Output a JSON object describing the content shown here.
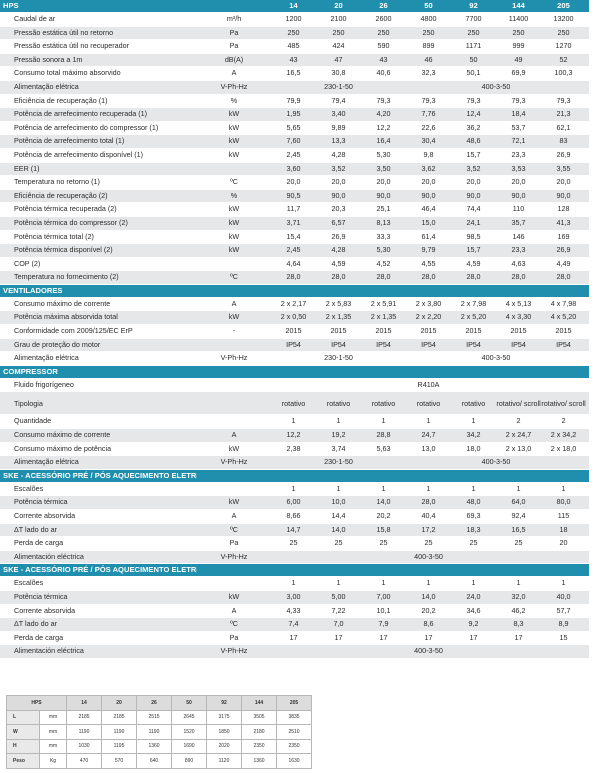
{
  "hps_header": {
    "title": "HPS",
    "models": [
      "14",
      "20",
      "26",
      "50",
      "92",
      "144",
      "205"
    ]
  },
  "hps_rows": [
    {
      "label": "Caudal de ar",
      "unit": "m³/h",
      "values": [
        "1200",
        "2100",
        "2600",
        "4800",
        "7700",
        "11400",
        "13200"
      ]
    },
    {
      "label": "Pressão estática útil no retorno",
      "unit": "Pa",
      "values": [
        "250",
        "250",
        "250",
        "250",
        "250",
        "250",
        "250"
      ]
    },
    {
      "label": "Pressão estática útil no recuperador",
      "unit": "Pa",
      "values": [
        "485",
        "424",
        "590",
        "899",
        "1171",
        "999",
        "1270"
      ]
    },
    {
      "label": "Pressão sonora a 1m",
      "unit": "dB(A)",
      "values": [
        "43",
        "47",
        "43",
        "46",
        "50",
        "49",
        "52"
      ]
    },
    {
      "label": "Consumo total máximo absorvido",
      "unit": "A",
      "values": [
        "16,5",
        "30,8",
        "40,6",
        "32,3",
        "50,1",
        "69,9",
        "100,3"
      ]
    },
    {
      "label": "Alimentação elétrica",
      "unit": "V-Ph-Hz",
      "spans": [
        {
          "text": "230-1-50",
          "cols": 3
        },
        {
          "text": "400-3-50",
          "cols": 4
        }
      ]
    },
    {
      "label": "Eficiência de recuperação (1)",
      "unit": "%",
      "values": [
        "79,9",
        "79,4",
        "79,3",
        "79,3",
        "79,3",
        "79,3",
        "79,3"
      ]
    },
    {
      "label": "Potência de arrefecimento recuperada (1)",
      "unit": "kW",
      "values": [
        "1,95",
        "3,40",
        "4,20",
        "7,76",
        "12,4",
        "18,4",
        "21,3"
      ]
    },
    {
      "label": "Potência de arrefecimento do compressor (1)",
      "unit": "kW",
      "values": [
        "5,65",
        "9,89",
        "12,2",
        "22,6",
        "36,2",
        "53,7",
        "62,1"
      ]
    },
    {
      "label": "Potência de arrefecimento total (1)",
      "unit": "kW",
      "values": [
        "7,60",
        "13,3",
        "16,4",
        "30,4",
        "48,6",
        "72,1",
        "83"
      ]
    },
    {
      "label": "Potência de arrefecimento disponível (1)",
      "unit": "kW",
      "values": [
        "2,45",
        "4,28",
        "5,30",
        "9,8",
        "15,7",
        "23,3",
        "26,9"
      ]
    },
    {
      "label": "EER (1)",
      "unit": "",
      "values": [
        "3,60",
        "3,52",
        "3,50",
        "3,62",
        "3,52",
        "3,53",
        "3,55"
      ]
    },
    {
      "label": "Temperatura no retorno (1)",
      "unit": "ºC",
      "values": [
        "20,0",
        "20,0",
        "20,0",
        "20,0",
        "20,0",
        "20,0",
        "20,0"
      ]
    },
    {
      "label": "Eficiência de recuperação (2)",
      "unit": "%",
      "values": [
        "90,5",
        "90,0",
        "90,0",
        "90,0",
        "90,0",
        "90,0",
        "90,0"
      ]
    },
    {
      "label": "Potência térmica recuperada (2)",
      "unit": "kW",
      "values": [
        "11,7",
        "20,3",
        "25,1",
        "46,4",
        "74,4",
        "110",
        "128"
      ]
    },
    {
      "label": "Potência térmica do compressor (2)",
      "unit": "kW",
      "values": [
        "3,71",
        "6,57",
        "8,13",
        "15,0",
        "24,1",
        "35,7",
        "41,3"
      ]
    },
    {
      "label": "Potência térmica total (2)",
      "unit": "kW",
      "values": [
        "15,4",
        "26,9",
        "33,3",
        "61,4",
        "98,5",
        "146",
        "169"
      ]
    },
    {
      "label": "Potência térmica disponível (2)",
      "unit": "kW",
      "values": [
        "2,45",
        "4,28",
        "5,30",
        "9,79",
        "15,7",
        "23,3",
        "26,9"
      ]
    },
    {
      "label": "COP (2)",
      "unit": "",
      "values": [
        "4,64",
        "4,59",
        "4,52",
        "4,55",
        "4,59",
        "4,63",
        "4,49"
      ]
    },
    {
      "label": "Temperatura no fornecimento (2)",
      "unit": "ºC",
      "values": [
        "28,0",
        "28,0",
        "28,0",
        "28,0",
        "28,0",
        "28,0",
        "28,0"
      ]
    }
  ],
  "ventiladores": {
    "title": "VENTILADORES",
    "rows": [
      {
        "label": "Consumo máximo de corrente",
        "unit": "A",
        "values": [
          "2 x 2,17",
          "2 x 5,83",
          "2 x 5,91",
          "2 x 3,80",
          "2 x 7,98",
          "4 x 5,13",
          "4 x 7,98"
        ]
      },
      {
        "label": "Potência máxima absorvida total",
        "unit": "kW",
        "values": [
          "2 x 0,50",
          "2 x 1,35",
          "2 x 1,35",
          "2 x 2,20",
          "2 x 5,20",
          "4 x 3,30",
          "4 x 5,20"
        ]
      },
      {
        "label": "Conformidade com 2009/125/EC ErP",
        "unit": "-",
        "values": [
          "2015",
          "2015",
          "2015",
          "2015",
          "2015",
          "2015",
          "2015"
        ]
      },
      {
        "label": "Grau de proteção do motor",
        "unit": "",
        "values": [
          "IP54",
          "IP54",
          "IP54",
          "IP54",
          "IP54",
          "IP54",
          "IP54"
        ]
      },
      {
        "label": "Alimentação elétrica",
        "unit": "V-Ph-Hz",
        "spans": [
          {
            "text": "230-1-50",
            "cols": 3
          },
          {
            "text": "400-3-50",
            "cols": 4
          }
        ]
      }
    ]
  },
  "compressor": {
    "title": "COMPRESSOR",
    "rows": [
      {
        "label": "Fluido frigorígeneo",
        "unit": "",
        "spans": [
          {
            "text": "R410A",
            "cols": 7
          }
        ]
      },
      {
        "label": "Tipologia",
        "unit": "",
        "tall": true,
        "values": [
          "rotativo",
          "rotativo",
          "rotativo",
          "rotativo",
          "rotativo",
          "rotativo/ scroll",
          "rotativo/ scroll"
        ]
      },
      {
        "label": "Quantidade",
        "unit": "",
        "values": [
          "1",
          "1",
          "1",
          "1",
          "1",
          "2",
          "2"
        ]
      },
      {
        "label": "Consumo máximo de corrente",
        "unit": "A",
        "values": [
          "12,2",
          "19,2",
          "28,8",
          "24,7",
          "34,2",
          "2 x 24,7",
          "2 x 34,2"
        ]
      },
      {
        "label": "Consumo máximo de potência",
        "unit": "kW",
        "values": [
          "2,38",
          "3,74",
          "5,63",
          "13,0",
          "18,0",
          "2 x 13,0",
          "2 x 18,0"
        ]
      },
      {
        "label": "Alimentação elétrica",
        "unit": "V-Ph-Hz",
        "spans": [
          {
            "text": "230-1-50",
            "cols": 3
          },
          {
            "text": "400-3-50",
            "cols": 4
          }
        ]
      }
    ]
  },
  "ske1": {
    "title": "SKE - ACESSÓRIO PRÉ / PÓS AQUECIMENTO ELETRICO (1)",
    "rows": [
      {
        "label": "Escalões",
        "unit": "",
        "values": [
          "1",
          "1",
          "1",
          "1",
          "1",
          "1",
          "1"
        ]
      },
      {
        "label": "Potência térmica",
        "unit": "kW",
        "values": [
          "6,00",
          "10,0",
          "14,0",
          "28,0",
          "48,0",
          "64,0",
          "80,0"
        ]
      },
      {
        "label": "Corrente absorvida",
        "unit": "A",
        "values": [
          "8,66",
          "14,4",
          "20,2",
          "40,4",
          "69,3",
          "92,4",
          "115"
        ]
      },
      {
        "label": "ΔT lado do ar",
        "unit": "ºC",
        "values": [
          "14,7",
          "14,0",
          "15,8",
          "17,2",
          "18,3",
          "16,5",
          "18"
        ]
      },
      {
        "label": "Perda de carga",
        "unit": "Pa",
        "values": [
          "25",
          "25",
          "25",
          "25",
          "25",
          "25",
          "20"
        ]
      },
      {
        "label": "Alimentación eléctrica",
        "unit": "V-Ph-Hz",
        "spans": [
          {
            "text": "400-3-50",
            "cols": 7
          }
        ]
      }
    ]
  },
  "ske2": {
    "title": "SKE - ACESSÓRIO PRÉ / PÓS AQUECIMENTO ELETRICO (2)",
    "rows": [
      {
        "label": "Escalões",
        "unit": "",
        "values": [
          "1",
          "1",
          "1",
          "1",
          "1",
          "1",
          "1"
        ]
      },
      {
        "label": "Potência térmica",
        "unit": "kW",
        "values": [
          "3,00",
          "5,00",
          "7,00",
          "14,0",
          "24,0",
          "32,0",
          "40,0"
        ]
      },
      {
        "label": "Corrente absorvida",
        "unit": "A",
        "values": [
          "4,33",
          "7,22",
          "10,1",
          "20,2",
          "34,6",
          "46,2",
          "57,7"
        ]
      },
      {
        "label": "ΔT lado do ar",
        "unit": "ºC",
        "values": [
          "7,4",
          "7,0",
          "7,9",
          "8,6",
          "9,2",
          "8,3",
          "8,9"
        ]
      },
      {
        "label": "Perda de carga",
        "unit": "Pa",
        "values": [
          "17",
          "17",
          "17",
          "17",
          "17",
          "17",
          "15"
        ]
      },
      {
        "label": "Alimentación eléctrica",
        "unit": "V-Ph-Hz",
        "spans": [
          {
            "text": "400-3-50",
            "cols": 7
          }
        ]
      }
    ]
  },
  "dimensions": {
    "header": "HPS",
    "models": [
      "14",
      "20",
      "26",
      "50",
      "92",
      "144",
      "205"
    ],
    "rows": [
      {
        "label": "L",
        "unit": "mm",
        "values": [
          "2185",
          "2185",
          "2515",
          "2645",
          "3175",
          "3505",
          "3835"
        ]
      },
      {
        "label": "W",
        "unit": "mm",
        "values": [
          "1190",
          "1190",
          "1190",
          "1520",
          "1850",
          "2180",
          "2510"
        ]
      },
      {
        "label": "H",
        "unit": "mm",
        "values": [
          "1030",
          "1195",
          "1360",
          "1690",
          "2020",
          "2350",
          "2350"
        ]
      },
      {
        "label": "Peso",
        "unit": "Kg",
        "values": [
          "470",
          "570",
          "640",
          "890",
          "1120",
          "1360",
          "1630"
        ]
      }
    ]
  }
}
